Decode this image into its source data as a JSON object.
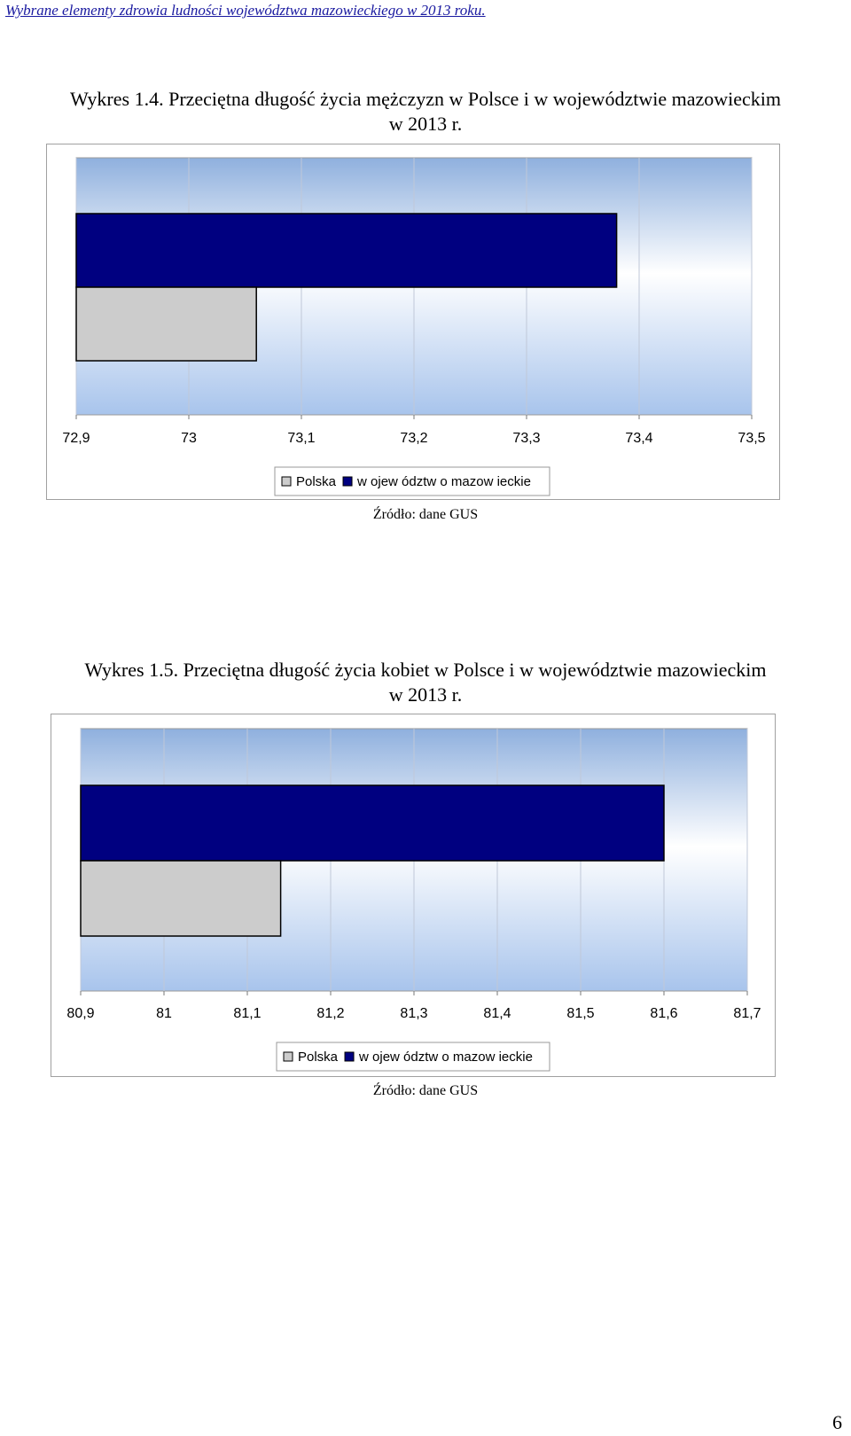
{
  "header": "Wybrane elementy zdrowia ludności województwa mazowieckiego w 2013 roku.",
  "page_number": "6",
  "colors": {
    "polska": "#cccccc",
    "mazowieckie": "#000080",
    "plot_top": "#8fb0de",
    "plot_mid": "#ffffff",
    "plot_bottom": "#a8c4ec"
  },
  "chart_data": [
    {
      "type": "bar",
      "orientation": "horizontal",
      "title_line1": "Wykres 1.4. Przeciętna długość życia mężczyzn w Polsce i w województwie mazowieckim",
      "title_line2": "w 2013 r.",
      "source": "Źródło: dane GUS",
      "xlim": [
        72.9,
        73.5
      ],
      "ticks": [
        "72,9",
        "73",
        "73,1",
        "73,2",
        "73,3",
        "73,4",
        "73,5"
      ],
      "series": [
        {
          "name": "Polska",
          "value": 73.06
        },
        {
          "name": "w ojew ództw o mazow ieckie",
          "value": 73.38
        }
      ],
      "legend": "bottom-center",
      "grid": true
    },
    {
      "type": "bar",
      "orientation": "horizontal",
      "title_line1": "Wykres 1.5. Przeciętna długość życia kobiet w Polsce i w województwie mazowieckim",
      "title_line2": "w 2013 r.",
      "source": "Źródło: dane GUS",
      "xlim": [
        80.9,
        81.7
      ],
      "ticks": [
        "80,9",
        "81",
        "81,1",
        "81,2",
        "81,3",
        "81,4",
        "81,5",
        "81,6",
        "81,7"
      ],
      "series": [
        {
          "name": "Polska",
          "value": 81.14
        },
        {
          "name": "w ojew ództw o mazow ieckie",
          "value": 81.6
        }
      ],
      "legend": "bottom-center",
      "grid": true
    }
  ]
}
